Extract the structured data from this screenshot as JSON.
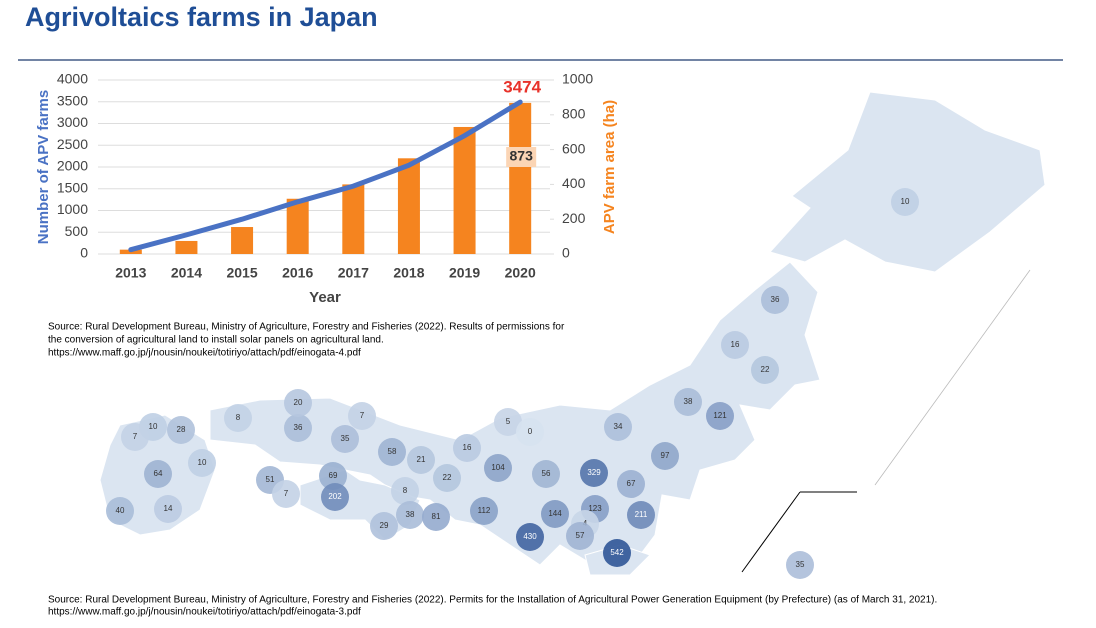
{
  "title": "Agrivoltaics farms in Japan",
  "chart_data": {
    "type": "bar_line",
    "categories": [
      "2013",
      "2014",
      "2015",
      "2016",
      "2017",
      "2018",
      "2019",
      "2020"
    ],
    "xlabel": "Year",
    "ylabel": "Number of APV farms",
    "y2label": "APV farm area (ha)",
    "ylim": [
      0,
      4000
    ],
    "yticks": [
      0,
      500,
      1000,
      1500,
      2000,
      2500,
      3000,
      3500,
      4000
    ],
    "y2lim": [
      0,
      1000
    ],
    "y2ticks": [
      0,
      200,
      400,
      600,
      800,
      1000
    ],
    "grid": true,
    "series": [
      {
        "name": "Number of APV farms",
        "type": "bar",
        "axis": "y",
        "color": "#f5841f",
        "values": [
          100,
          300,
          620,
          1270,
          1600,
          2200,
          2920,
          3474
        ]
      },
      {
        "name": "APV farm area (ha)",
        "type": "line",
        "axis": "y2",
        "color": "#4a72c4",
        "values": [
          25,
          110,
          200,
          300,
          390,
          510,
          680,
          873
        ]
      }
    ]
  },
  "source1": [
    "Source: Rural Development Bureau, Ministry of Agriculture, Forestry and Fisheries (2022). Results of permissions for",
    "the conversion of agricultural land to install solar panels on agricultural land.",
    "https://www.maff.go.jp/j/nousin/noukei/totiriyo/attach/pdf/einogata-4.pdf"
  ],
  "map": {
    "values": [
      10,
      36,
      16,
      22,
      38,
      121,
      34,
      97,
      5,
      0,
      16,
      104,
      56,
      329,
      67,
      211,
      123,
      144,
      4,
      57,
      542,
      430,
      112,
      22,
      21,
      58,
      35,
      7,
      36,
      20,
      8,
      69,
      202,
      8,
      38,
      81,
      29,
      51,
      7,
      10,
      28,
      7,
      10,
      64,
      40,
      14,
      35
    ]
  },
  "source2": [
    "Source: Rural Development Bureau, Ministry of Agriculture, Forestry and Fisheries (2022). Permits for the Installation of Agricultural Power Generation Equipment (by Prefecture) (as of March 31, 2021).",
    "https://www.maff.go.jp/j/nousin/noukei/totiriyo/attach/pdf/einogata-3.pdf"
  ]
}
